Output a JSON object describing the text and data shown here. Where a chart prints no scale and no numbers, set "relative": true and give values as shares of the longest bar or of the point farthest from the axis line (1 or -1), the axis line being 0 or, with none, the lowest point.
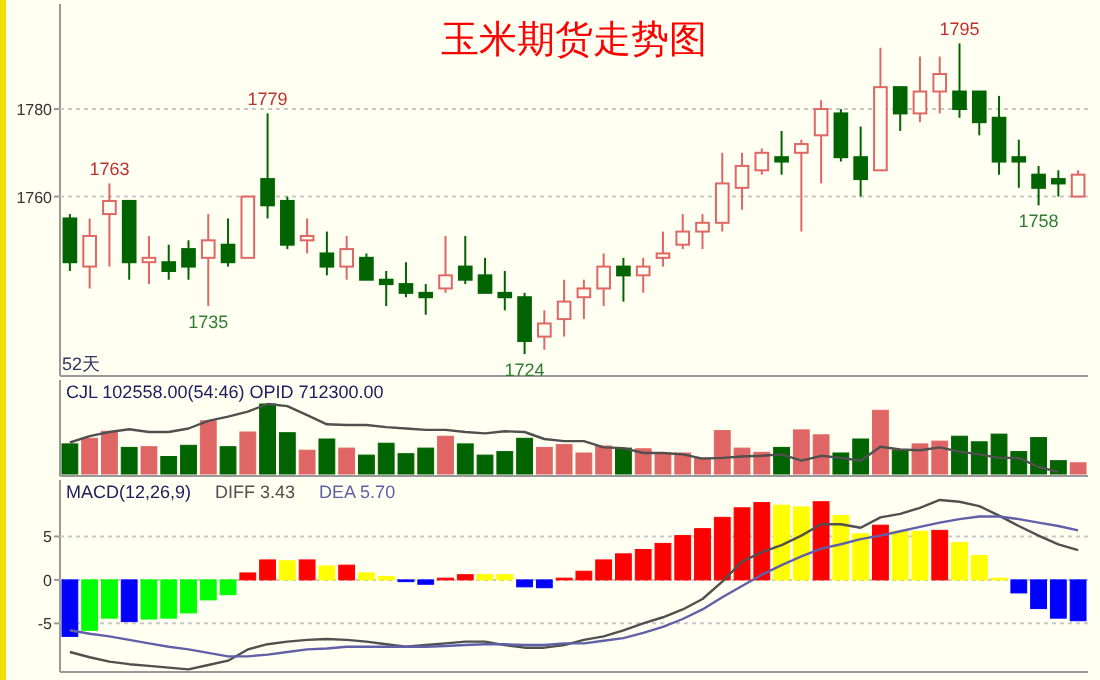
{
  "chart_data": [
    {
      "type": "candlestick",
      "title": "玉米期货走势图",
      "categories": [
        null,
        null,
        null,
        null,
        null,
        null,
        null,
        null,
        null,
        null,
        null,
        null,
        null,
        null,
        null,
        null,
        null,
        null,
        null,
        null,
        null,
        null,
        null,
        null,
        null,
        null,
        null,
        null,
        null,
        null,
        null,
        null,
        null,
        null,
        null,
        null,
        null,
        null,
        null,
        null,
        null,
        null,
        null,
        null,
        null,
        null,
        null,
        null,
        null,
        null,
        null,
        null
      ],
      "ohlc": [
        [
          1755,
          1756,
          1743,
          1745
        ],
        [
          1744,
          1755,
          1739,
          1751
        ],
        [
          1756,
          1763,
          1744,
          1759
        ],
        [
          1759,
          1759,
          1741,
          1745
        ],
        [
          1745,
          1751,
          1740,
          1746
        ],
        [
          1745,
          1749,
          1741,
          1743
        ],
        [
          1748,
          1750,
          1741,
          1744
        ],
        [
          1746,
          1756,
          1735,
          1750
        ],
        [
          1749,
          1755,
          1744,
          1745
        ],
        [
          1746,
          1760,
          1746,
          1760
        ],
        [
          1764,
          1779,
          1755,
          1758
        ],
        [
          1759,
          1760,
          1748,
          1749
        ],
        [
          1750,
          1755,
          1747,
          1751
        ],
        [
          1747,
          1752,
          1742,
          1744
        ],
        [
          1744,
          1751,
          1741,
          1748
        ],
        [
          1746,
          1747,
          1741,
          1741
        ],
        [
          1741,
          1743,
          1735,
          1740
        ],
        [
          1740,
          1745,
          1737,
          1738
        ],
        [
          1738,
          1740,
          1733,
          1737
        ],
        [
          1739,
          1751,
          1738,
          1742
        ],
        [
          1744,
          1751,
          1740,
          1741
        ],
        [
          1742,
          1746,
          1738,
          1738
        ],
        [
          1738,
          1743,
          1734,
          1737
        ],
        [
          1737,
          1738,
          1724,
          1727
        ],
        [
          1728,
          1734,
          1725,
          1731
        ],
        [
          1732,
          1741,
          1728,
          1736
        ],
        [
          1737,
          1741,
          1732,
          1739
        ],
        [
          1739,
          1747,
          1735,
          1744
        ],
        [
          1744,
          1746,
          1736,
          1742
        ],
        [
          1742,
          1746,
          1738,
          1744
        ],
        [
          1746,
          1752,
          1744,
          1747
        ],
        [
          1749,
          1756,
          1748,
          1752
        ],
        [
          1752,
          1756,
          1748,
          1754
        ],
        [
          1754,
          1770,
          1752,
          1763
        ],
        [
          1762,
          1770,
          1757,
          1767
        ],
        [
          1766,
          1771,
          1765,
          1770
        ],
        [
          1769,
          1775,
          1765,
          1768
        ],
        [
          1770,
          1773,
          1752,
          1772
        ],
        [
          1774,
          1782,
          1763,
          1780
        ],
        [
          1779,
          1780,
          1768,
          1769
        ],
        [
          1769,
          1776,
          1760,
          1764
        ],
        [
          1766,
          1794,
          1766,
          1785
        ],
        [
          1785,
          1785,
          1775,
          1779
        ],
        [
          1779,
          1792,
          1777,
          1784
        ],
        [
          1784,
          1792,
          1779,
          1788
        ],
        [
          1784,
          1795,
          1778,
          1780
        ],
        [
          1784,
          1784,
          1774,
          1777
        ],
        [
          1778,
          1783,
          1765,
          1768
        ],
        [
          1769,
          1773,
          1762,
          1768
        ],
        [
          1765,
          1767,
          1758,
          1762
        ],
        [
          1764,
          1766,
          1760,
          1763
        ],
        [
          1760,
          1766,
          1760,
          1765
        ]
      ],
      "colors": [
        "#006400",
        "#e06666",
        "#e06666",
        "#006400",
        "#e06666",
        "#006400",
        "#006400",
        "#e06666",
        "#006400",
        "#e06666",
        "#006400",
        "#006400",
        "#e06666",
        "#006400",
        "#e06666",
        "#006400",
        "#006400",
        "#006400",
        "#006400",
        "#e06666",
        "#006400",
        "#006400",
        "#006400",
        "#006400",
        "#e06666",
        "#e06666",
        "#e06666",
        "#e06666",
        "#006400",
        "#e06666",
        "#e06666",
        "#e06666",
        "#e06666",
        "#e06666",
        "#e06666",
        "#e06666",
        "#006400",
        "#e06666",
        "#e06666",
        "#006400",
        "#006400",
        "#e06666",
        "#006400",
        "#e06666",
        "#e06666",
        "#006400",
        "#006400",
        "#006400",
        "#006400",
        "#006400",
        "#006400",
        "#e06666"
      ],
      "ylim": [
        1719,
        1804
      ],
      "yticks": [
        1760,
        1780
      ],
      "grid": "y",
      "annotations": [
        "52天",
        {
          "text": "1763",
          "y": 1763
        },
        {
          "text": "1779",
          "y": 1779
        },
        {
          "text": "1735",
          "y": 1735
        },
        {
          "text": "1724",
          "y": 1724
        },
        {
          "text": "1795",
          "y": 1795
        },
        {
          "text": "1758",
          "y": 1758
        }
      ]
    },
    {
      "type": "bar",
      "relative": true,
      "title": "CJL  102558.00(54:46)   OPID 712300.00",
      "categories": [
        null,
        null,
        null,
        null,
        null,
        null,
        null,
        null,
        null,
        null,
        null,
        null,
        null,
        null,
        null,
        null,
        null,
        null,
        null,
        null,
        null,
        null,
        null,
        null,
        null,
        null,
        null,
        null,
        null,
        null,
        null,
        null,
        null,
        null,
        null,
        null,
        null,
        null,
        null,
        null,
        null,
        null,
        null,
        null,
        null,
        null,
        null,
        null,
        null,
        null,
        null,
        null
      ],
      "series": [
        {
          "type": "bar",
          "values": [
            0.43,
            0.51,
            0.61,
            0.38,
            0.39,
            0.25,
            0.41,
            0.76,
            0.39,
            0.6,
            1,
            0.59,
            0.34,
            0.5,
            0.37,
            0.27,
            0.44,
            0.29,
            0.37,
            0.54,
            0.43,
            0.27,
            0.32,
            0.51,
            0.38,
            0.42,
            0.3,
            0.4,
            0.37,
            0.36,
            0.3,
            0.3,
            0.23,
            0.62,
            0.37,
            0.31,
            0.38,
            0.63,
            0.56,
            0.3,
            0.5,
            0.91,
            0.34,
            0.43,
            0.47,
            0.54,
            0.46,
            0.57,
            0.32,
            0.52,
            0.19,
            0.16
          ],
          "colors": [
            "#006400",
            "#e06666",
            "#e06666",
            "#006400",
            "#e06666",
            "#006400",
            "#006400",
            "#e06666",
            "#006400",
            "#e06666",
            "#006400",
            "#006400",
            "#e06666",
            "#006400",
            "#e06666",
            "#006400",
            "#006400",
            "#006400",
            "#006400",
            "#e06666",
            "#006400",
            "#006400",
            "#006400",
            "#006400",
            "#e06666",
            "#e06666",
            "#e06666",
            "#e06666",
            "#006400",
            "#e06666",
            "#e06666",
            "#e06666",
            "#e06666",
            "#e06666",
            "#e06666",
            "#e06666",
            "#006400",
            "#e06666",
            "#e06666",
            "#006400",
            "#006400",
            "#e06666",
            "#006400",
            "#e06666",
            "#e06666",
            "#006400",
            "#006400",
            "#006400",
            "#006400",
            "#006400",
            "#006400",
            "#e06666"
          ]
        },
        {
          "type": "line",
          "color": "#505050",
          "values": [
            0.45,
            0.54,
            0.6,
            0.64,
            0.6,
            0.6,
            0.65,
            0.76,
            0.82,
            0.89,
            1,
            0.97,
            0.84,
            0.71,
            0.7,
            0.7,
            0.67,
            0.65,
            0.63,
            0.63,
            0.6,
            0.58,
            0.61,
            0.6,
            0.5,
            0.47,
            0.47,
            0.38,
            0.37,
            0.3,
            0.3,
            0.28,
            0.22,
            0.23,
            0.25,
            0.26,
            0.28,
            0.19,
            0.26,
            0.23,
            0.19,
            0.39,
            0.35,
            0.34,
            0.38,
            0.32,
            0.28,
            0.23,
            0.23,
            0.1,
            0.03,
            null
          ]
        }
      ]
    },
    {
      "type": "bar",
      "title": "MACD(12,26,9)",
      "categories": [
        null,
        null,
        null,
        null,
        null,
        null,
        null,
        null,
        null,
        null,
        null,
        null,
        null,
        null,
        null,
        null,
        null,
        null,
        null,
        null,
        null,
        null,
        null,
        null,
        null,
        null,
        null,
        null,
        null,
        null,
        null,
        null,
        null,
        null,
        null,
        null,
        null,
        null,
        null,
        null,
        null,
        null,
        null,
        null,
        null,
        null,
        null,
        null,
        null,
        null,
        null,
        null
      ],
      "ylim": [
        -10.6,
        11.5
      ],
      "yticks": [
        -5,
        0,
        5
      ],
      "grid": "y",
      "series": [
        {
          "type": "bar",
          "values": [
            -6.5,
            -5.8,
            -4.4,
            -4.8,
            -4.5,
            -4.4,
            -3.8,
            -2.3,
            -1.7,
            0.8,
            2.3,
            2.2,
            2.3,
            1.6,
            1.7,
            0.8,
            0.4,
            -0.2,
            -0.5,
            0.2,
            0.6,
            0.6,
            0.6,
            -0.8,
            -0.9,
            0.2,
            1,
            2.3,
            3,
            3.5,
            4.2,
            5.1,
            5.9,
            7.2,
            8.3,
            8.9,
            8.6,
            8.4,
            9,
            7.4,
            5.3,
            6.3,
            5.6,
            5.6,
            5.7,
            4.3,
            2.8,
            0.2,
            -1.5,
            -3.3,
            -4.4,
            -4.7
          ],
          "colors": [
            "#0000ff",
            "#00ff00",
            "#00ff00",
            "#0000ff",
            "#00ff00",
            "#00ff00",
            "#00ff00",
            "#00ff00",
            "#00ff00",
            "#ff0000",
            "#ff0000",
            "#ffff00",
            "#ff0000",
            "#ffff00",
            "#ff0000",
            "#ffff00",
            "#ffff00",
            "#0000ff",
            "#0000ff",
            "#ff0000",
            "#ff0000",
            "#ffff00",
            "#ffff00",
            "#0000ff",
            "#0000ff",
            "#ff0000",
            "#ff0000",
            "#ff0000",
            "#ff0000",
            "#ff0000",
            "#ff0000",
            "#ff0000",
            "#ff0000",
            "#ff0000",
            "#ff0000",
            "#ff0000",
            "#ffff00",
            "#ffff00",
            "#ff0000",
            "#ffff00",
            "#ffff00",
            "#ff0000",
            "#ffff00",
            "#ffff00",
            "#ff0000",
            "#ffff00",
            "#ffff00",
            "#ffff00",
            "#0000ff",
            "#0000ff",
            "#0000ff",
            "#0000ff"
          ]
        },
        {
          "type": "line",
          "name": "DIFF 3.43",
          "color": "#505050",
          "values": [
            -8.3,
            -8.9,
            -9.4,
            -9.7,
            -9.9,
            -10.1,
            -10.3,
            -9.8,
            -9.3,
            -8,
            -7.4,
            -7.1,
            -6.9,
            -6.8,
            -6.9,
            -7.1,
            -7.4,
            -7.7,
            -7.5,
            -7.3,
            -7.1,
            -7.1,
            -7.5,
            -7.8,
            -7.8,
            -7.5,
            -6.9,
            -6.5,
            -5.8,
            -5,
            -4.3,
            -3.4,
            -2.2,
            -0.2,
            2.1,
            3.2,
            4,
            5.1,
            6.4,
            6.4,
            6,
            7.2,
            7.6,
            8.3,
            9.2,
            9,
            8.5,
            7.4,
            6.2,
            5.1,
            4.1,
            3.43
          ]
        },
        {
          "type": "line",
          "name": "DEA 5.70",
          "color": "#6060a8",
          "values": [
            -5.8,
            -6.2,
            -6.5,
            -6.9,
            -7.3,
            -7.7,
            -8,
            -8.4,
            -8.8,
            -8.8,
            -8.6,
            -8.3,
            -8,
            -7.9,
            -7.7,
            -7.7,
            -7.7,
            -7.7,
            -7.7,
            -7.6,
            -7.5,
            -7.4,
            -7.4,
            -7.5,
            -7.5,
            -7.3,
            -7.3,
            -7,
            -6.7,
            -6.1,
            -5.4,
            -4.5,
            -3.4,
            -2,
            -0.7,
            0.6,
            1.7,
            2.7,
            3.6,
            4.1,
            4.7,
            5.1,
            5.6,
            6.1,
            6.6,
            7,
            7.3,
            7.3,
            7,
            6.6,
            6.2,
            5.7
          ]
        }
      ]
    }
  ]
}
